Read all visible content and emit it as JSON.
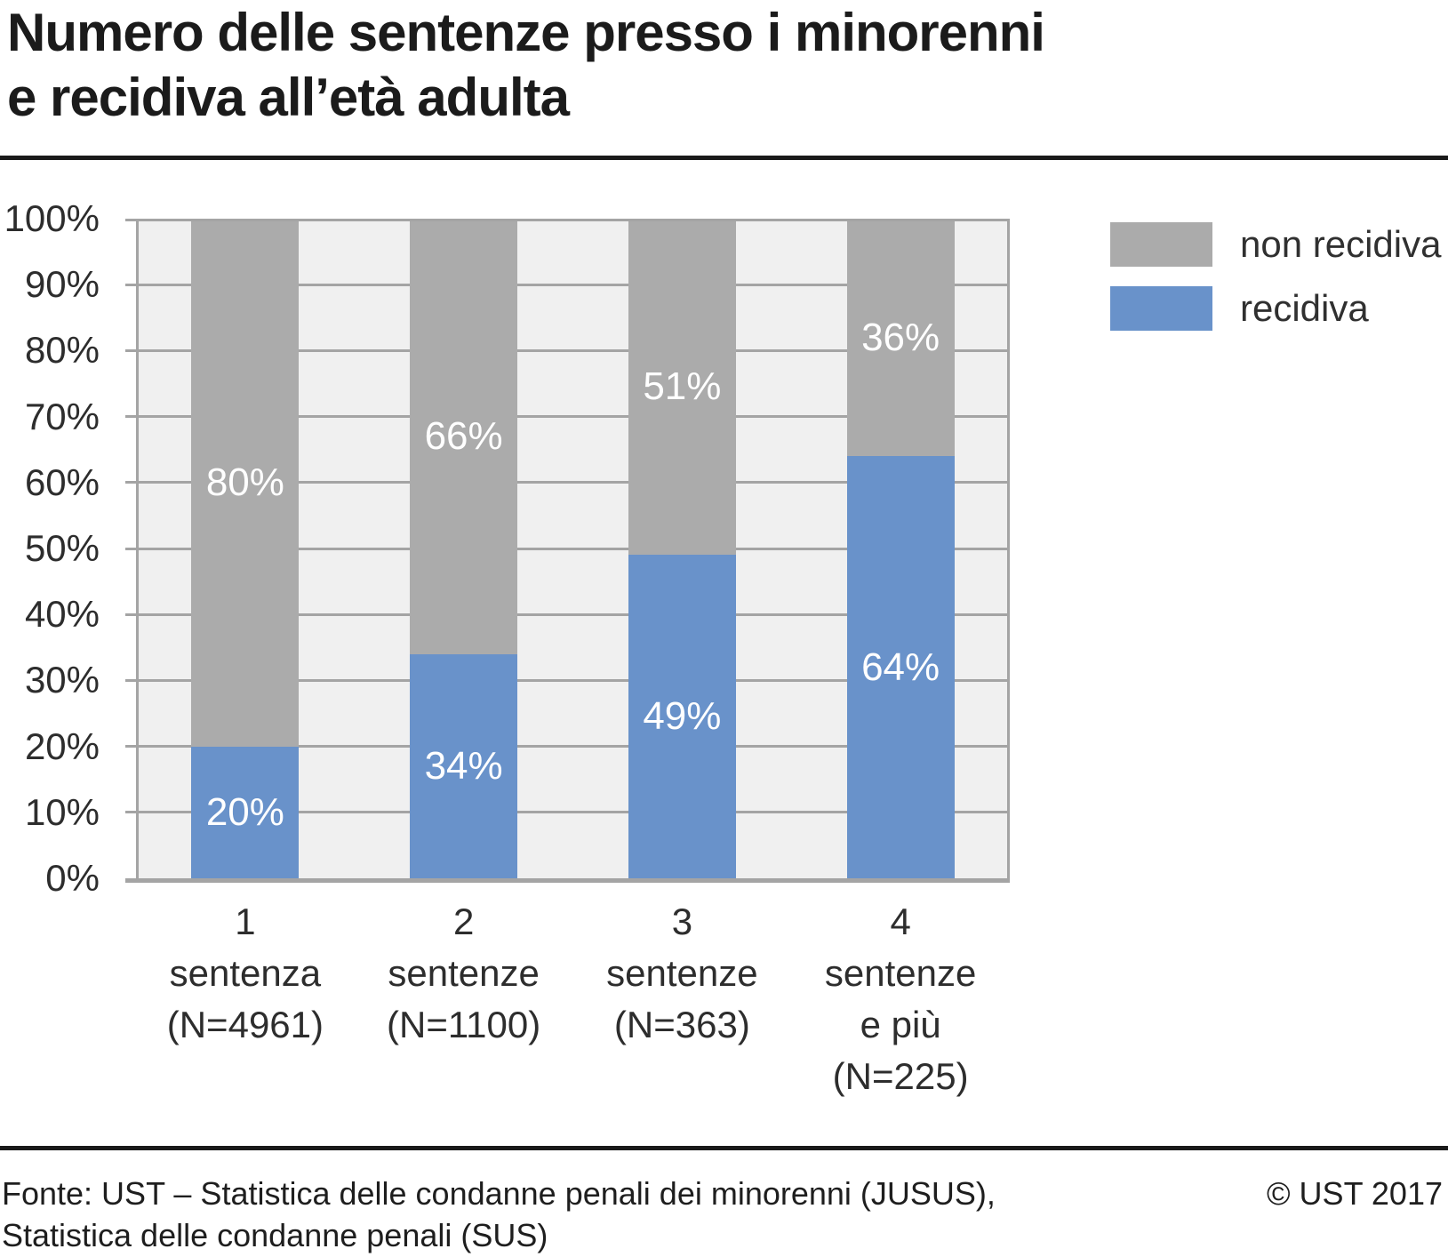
{
  "header": {
    "title": "Numero delle sentenze presso i minorenni\ne recidiva all’età adulta"
  },
  "chart_data": {
    "type": "bar",
    "variant": "stacked-100-percent",
    "title": "Numero delle sentenze presso i minorenni e recidiva all’età adulta",
    "categories": [
      {
        "lines": [
          "1",
          "sentenza",
          "(N=4961)"
        ],
        "n": 4961
      },
      {
        "lines": [
          "2",
          "sentenze",
          "(N=1100)"
        ],
        "n": 1100
      },
      {
        "lines": [
          "3",
          "sentenze",
          "(N=363)"
        ],
        "n": 363
      },
      {
        "lines": [
          "4",
          "sentenze",
          "e più",
          "(N=225)"
        ],
        "n": 225
      }
    ],
    "series": [
      {
        "name": "non recidiva",
        "stack_position": "top",
        "color": "#ababab",
        "values": [
          80,
          66,
          51,
          36
        ],
        "labels": [
          "80%",
          "66%",
          "51%",
          "36%"
        ]
      },
      {
        "name": "recidiva",
        "stack_position": "bottom",
        "color": "#6992ca",
        "values": [
          20,
          34,
          49,
          64
        ],
        "labels": [
          "20%",
          "34%",
          "49%",
          "64%"
        ]
      }
    ],
    "ylim": [
      0,
      100
    ],
    "yticks": [
      0,
      10,
      20,
      30,
      40,
      50,
      60,
      70,
      80,
      90,
      100
    ],
    "ytick_labels": [
      "0%",
      "10%",
      "20%",
      "30%",
      "40%",
      "50%",
      "60%",
      "70%",
      "80%",
      "90%",
      "100%"
    ],
    "xlabel": "",
    "ylabel": "",
    "grid": "horizontal",
    "legend_position": "top-right",
    "plot_bg": "#f0f0f0",
    "grid_color": "#a4a4a4",
    "bar_label_color": "#ffffff"
  },
  "legend": {
    "items": [
      {
        "label": "non recidiva",
        "color": "#ababab"
      },
      {
        "label": "recidiva",
        "color": "#6992ca"
      }
    ]
  },
  "footer": {
    "source": "Fonte: UST – Statistica delle condanne penali dei minorenni (JUSUS),\nStatistica delle condanne penali (SUS)",
    "copyright": "© UST 2017"
  }
}
